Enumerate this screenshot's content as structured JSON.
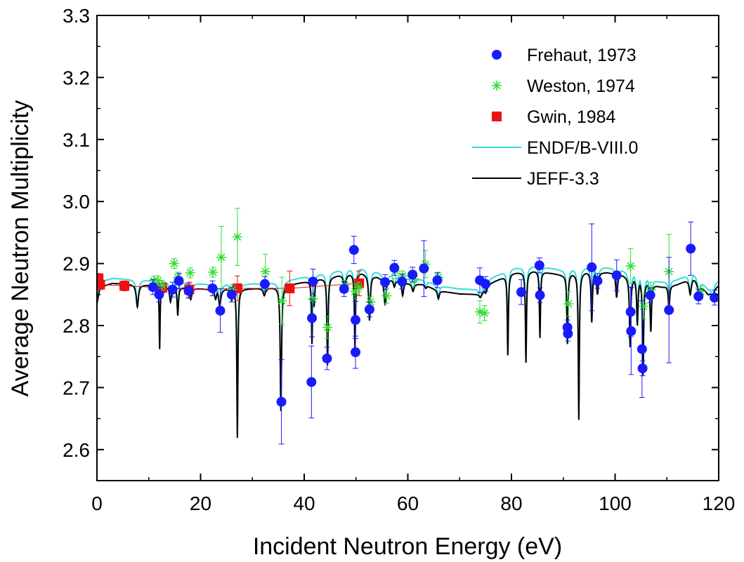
{
  "chart_data": {
    "type": "scatter",
    "title": "",
    "xlabel": "Incident Neutron Energy (eV)",
    "ylabel": "Average Neutron Multiplicity",
    "xlim": [
      0,
      120
    ],
    "ylim": [
      2.55,
      3.3
    ],
    "x_ticks": [
      0,
      20,
      40,
      60,
      80,
      100,
      120
    ],
    "y_ticks": [
      2.6,
      2.7,
      2.8,
      2.9,
      3.0,
      3.1,
      3.2,
      3.3
    ],
    "y_tick_labels": [
      "2.6",
      "2.7",
      "2.8",
      "2.9",
      "3.0",
      "3.1",
      "3.2",
      "3.3"
    ],
    "grid": false,
    "legend_position": "top-right",
    "series": [
      {
        "name": "Frehaut, 1973",
        "kind": "points",
        "marker": "circle",
        "color": "#1a1aff",
        "points": [
          {
            "x": 10.8,
            "y": 2.862,
            "err": 0.012
          },
          {
            "x": 12.0,
            "y": 2.85,
            "err": 0.012
          },
          {
            "x": 14.6,
            "y": 2.858,
            "err": 0.012
          },
          {
            "x": 15.8,
            "y": 2.872,
            "err": 0.012
          },
          {
            "x": 17.7,
            "y": 2.856,
            "err": 0.012
          },
          {
            "x": 22.3,
            "y": 2.86,
            "err": 0.012
          },
          {
            "x": 23.8,
            "y": 2.824,
            "err": 0.035
          },
          {
            "x": 26.0,
            "y": 2.85,
            "err": 0.012
          },
          {
            "x": 32.4,
            "y": 2.867,
            "err": 0.012
          },
          {
            "x": 35.6,
            "y": 2.677,
            "err": 0.068
          },
          {
            "x": 41.4,
            "y": 2.709,
            "err": 0.058
          },
          {
            "x": 41.5,
            "y": 2.812,
            "err": 0.03
          },
          {
            "x": 41.7,
            "y": 2.871,
            "err": 0.02
          },
          {
            "x": 44.4,
            "y": 2.747,
            "err": 0.018
          },
          {
            "x": 47.7,
            "y": 2.859,
            "err": 0.012
          },
          {
            "x": 49.6,
            "y": 2.922,
            "err": 0.022
          },
          {
            "x": 49.9,
            "y": 2.809,
            "err": 0.03
          },
          {
            "x": 49.9,
            "y": 2.757,
            "err": 0.026
          },
          {
            "x": 52.6,
            "y": 2.826,
            "err": 0.012
          },
          {
            "x": 55.6,
            "y": 2.87,
            "err": 0.012
          },
          {
            "x": 57.4,
            "y": 2.893,
            "err": 0.012
          },
          {
            "x": 58.9,
            "y": 2.871,
            "err": 0.012
          },
          {
            "x": 60.9,
            "y": 2.882,
            "err": 0.012
          },
          {
            "x": 63.1,
            "y": 2.892,
            "err": 0.045
          },
          {
            "x": 65.7,
            "y": 2.873,
            "err": 0.012
          },
          {
            "x": 73.9,
            "y": 2.873,
            "err": 0.02
          },
          {
            "x": 75.0,
            "y": 2.867,
            "err": 0.012
          },
          {
            "x": 81.9,
            "y": 2.854,
            "err": 0.02
          },
          {
            "x": 85.4,
            "y": 2.897,
            "err": 0.012
          },
          {
            "x": 85.5,
            "y": 2.849,
            "err": 0.012
          },
          {
            "x": 90.8,
            "y": 2.797,
            "err": 0.012
          },
          {
            "x": 90.9,
            "y": 2.787,
            "err": 0.012
          },
          {
            "x": 95.5,
            "y": 2.894,
            "err": 0.07
          },
          {
            "x": 96.6,
            "y": 2.872,
            "err": 0.012
          },
          {
            "x": 100.3,
            "y": 2.881,
            "err": 0.025
          },
          {
            "x": 103.0,
            "y": 2.822,
            "err": 0.04
          },
          {
            "x": 103.1,
            "y": 2.791,
            "err": 0.07
          },
          {
            "x": 105.2,
            "y": 2.762,
            "err": 0.078
          },
          {
            "x": 105.3,
            "y": 2.731,
            "err": 0.012
          },
          {
            "x": 106.8,
            "y": 2.849,
            "err": 0.012
          },
          {
            "x": 110.4,
            "y": 2.825,
            "err": 0.085
          },
          {
            "x": 114.6,
            "y": 2.924,
            "err": 0.043
          },
          {
            "x": 116.1,
            "y": 2.847,
            "err": 0.012
          },
          {
            "x": 119.2,
            "y": 2.845,
            "err": 0.012
          }
        ]
      },
      {
        "name": "Weston, 1974",
        "kind": "points",
        "marker": "asterisk",
        "color": "#33dd33",
        "points": [
          {
            "x": 11.0,
            "y": 2.872,
            "err": 0.008
          },
          {
            "x": 11.8,
            "y": 2.872,
            "err": 0.008
          },
          {
            "x": 12.6,
            "y": 2.865,
            "err": 0.008
          },
          {
            "x": 14.9,
            "y": 2.9,
            "err": 0.008
          },
          {
            "x": 15.6,
            "y": 2.878,
            "err": 0.008
          },
          {
            "x": 18.0,
            "y": 2.885,
            "err": 0.008
          },
          {
            "x": 22.4,
            "y": 2.886,
            "err": 0.008
          },
          {
            "x": 24.0,
            "y": 2.91,
            "err": 0.05
          },
          {
            "x": 26.1,
            "y": 2.858,
            "err": 0.008
          },
          {
            "x": 27.1,
            "y": 2.943,
            "err": 0.046
          },
          {
            "x": 32.5,
            "y": 2.887,
            "err": 0.028
          },
          {
            "x": 35.7,
            "y": 2.84,
            "err": 0.038
          },
          {
            "x": 41.7,
            "y": 2.843,
            "err": 0.032
          },
          {
            "x": 44.5,
            "y": 2.797,
            "err": 0.018
          },
          {
            "x": 47.8,
            "y": 2.865,
            "err": 0.008
          },
          {
            "x": 49.8,
            "y": 2.855,
            "err": 0.012
          },
          {
            "x": 50.5,
            "y": 2.862,
            "err": 0.008
          },
          {
            "x": 52.8,
            "y": 2.838,
            "err": 0.008
          },
          {
            "x": 55.9,
            "y": 2.848,
            "err": 0.012
          },
          {
            "x": 57.6,
            "y": 2.888,
            "err": 0.012
          },
          {
            "x": 59.0,
            "y": 2.88,
            "err": 0.008
          },
          {
            "x": 61.2,
            "y": 2.875,
            "err": 0.012
          },
          {
            "x": 63.4,
            "y": 2.899,
            "err": 0.022
          },
          {
            "x": 65.9,
            "y": 2.878,
            "err": 0.008
          },
          {
            "x": 73.9,
            "y": 2.822,
            "err": 0.018
          },
          {
            "x": 74.8,
            "y": 2.82,
            "err": 0.012
          },
          {
            "x": 91.0,
            "y": 2.835,
            "err": 0.02
          },
          {
            "x": 103.0,
            "y": 2.896,
            "err": 0.028
          },
          {
            "x": 105.5,
            "y": 2.831,
            "err": 0.02
          },
          {
            "x": 106.9,
            "y": 2.858,
            "err": 0.012
          },
          {
            "x": 110.4,
            "y": 2.887,
            "err": 0.06
          },
          {
            "x": 116.5,
            "y": 2.855,
            "err": 0.008
          }
        ]
      },
      {
        "name": "Gwin, 1984",
        "kind": "points",
        "marker": "square",
        "color": "#ee1111",
        "points": [
          {
            "x": 0.3,
            "y": 2.876,
            "err": 0.008
          },
          {
            "x": 0.6,
            "y": 2.866,
            "err": 0.008
          },
          {
            "x": 5.3,
            "y": 2.864,
            "err": 0.008
          },
          {
            "x": 12.6,
            "y": 2.861,
            "err": 0.008
          },
          {
            "x": 17.8,
            "y": 2.858,
            "err": 0.012
          },
          {
            "x": 27.1,
            "y": 2.86,
            "err": 0.02
          },
          {
            "x": 37.2,
            "y": 2.86,
            "err": 0.028
          },
          {
            "x": 50.6,
            "y": 2.868,
            "err": 0.02
          }
        ]
      },
      {
        "name": "ENDF/B-VIII.0",
        "kind": "line",
        "color": "#33dddd",
        "offset": 0.008
      },
      {
        "name": "JEFF-3.3",
        "kind": "line",
        "color": "#000000",
        "offset": 0.0,
        "baseline": [
          [
            0,
            2.835
          ],
          [
            0.6,
            2.862
          ],
          [
            3,
            2.868
          ],
          [
            8,
            2.866
          ],
          [
            15,
            2.862
          ],
          [
            22,
            2.858
          ],
          [
            28,
            2.859
          ],
          [
            33,
            2.86
          ],
          [
            38,
            2.867
          ],
          [
            42,
            2.873
          ],
          [
            47,
            2.881
          ],
          [
            51,
            2.884
          ],
          [
            56,
            2.875
          ],
          [
            60,
            2.868
          ],
          [
            63,
            2.866
          ],
          [
            66,
            2.856
          ],
          [
            70,
            2.851
          ],
          [
            74,
            2.85
          ],
          [
            76,
            2.868
          ],
          [
            80,
            2.884
          ],
          [
            85,
            2.888
          ],
          [
            90,
            2.881
          ],
          [
            95,
            2.886
          ],
          [
            100,
            2.885
          ],
          [
            105,
            2.871
          ],
          [
            109,
            2.862
          ],
          [
            112,
            2.866
          ],
          [
            115,
            2.877
          ],
          [
            118,
            2.85
          ],
          [
            120,
            2.865
          ]
        ],
        "resonances": [
          [
            7.8,
            2.83,
            0.25
          ],
          [
            11.7,
            2.845,
            0.15
          ],
          [
            12.1,
            2.762,
            0.1
          ],
          [
            14.2,
            2.838,
            0.22
          ],
          [
            15.6,
            2.816,
            0.15
          ],
          [
            18.1,
            2.842,
            0.25
          ],
          [
            22.9,
            2.842,
            0.25
          ],
          [
            23.7,
            2.832,
            0.25
          ],
          [
            26.0,
            2.84,
            0.22
          ],
          [
            27.1,
            2.619,
            0.12
          ],
          [
            32.3,
            2.848,
            0.25
          ],
          [
            35.5,
            2.662,
            0.15
          ],
          [
            41.5,
            2.77,
            0.12
          ],
          [
            41.9,
            2.83,
            0.15
          ],
          [
            44.5,
            2.736,
            0.13
          ],
          [
            47.8,
            2.86,
            0.25
          ],
          [
            49.8,
            2.76,
            0.12
          ],
          [
            52.6,
            2.808,
            0.18
          ],
          [
            55.6,
            2.835,
            0.25
          ],
          [
            57.4,
            2.862,
            0.2
          ],
          [
            59.0,
            2.848,
            0.2
          ],
          [
            61.0,
            2.855,
            0.25
          ],
          [
            63.5,
            2.86,
            0.2
          ],
          [
            65.9,
            2.843,
            0.2
          ],
          [
            74.0,
            2.845,
            0.25
          ],
          [
            75.0,
            2.852,
            0.2
          ],
          [
            79.3,
            2.752,
            0.12
          ],
          [
            82.8,
            2.74,
            0.12
          ],
          [
            85.5,
            2.78,
            0.12
          ],
          [
            90.8,
            2.77,
            0.13
          ],
          [
            93.0,
            2.648,
            0.12
          ],
          [
            95.5,
            2.805,
            0.15
          ],
          [
            96.6,
            2.85,
            0.2
          ],
          [
            100.3,
            2.845,
            0.2
          ],
          [
            102.9,
            2.765,
            0.15
          ],
          [
            104.3,
            2.8,
            0.15
          ],
          [
            105.4,
            2.72,
            0.13
          ],
          [
            106.9,
            2.79,
            0.15
          ],
          [
            110.4,
            2.825,
            0.15
          ],
          [
            114.5,
            2.85,
            0.25
          ],
          [
            116.2,
            2.843,
            0.2
          ],
          [
            118.8,
            2.84,
            0.2
          ]
        ]
      }
    ]
  }
}
